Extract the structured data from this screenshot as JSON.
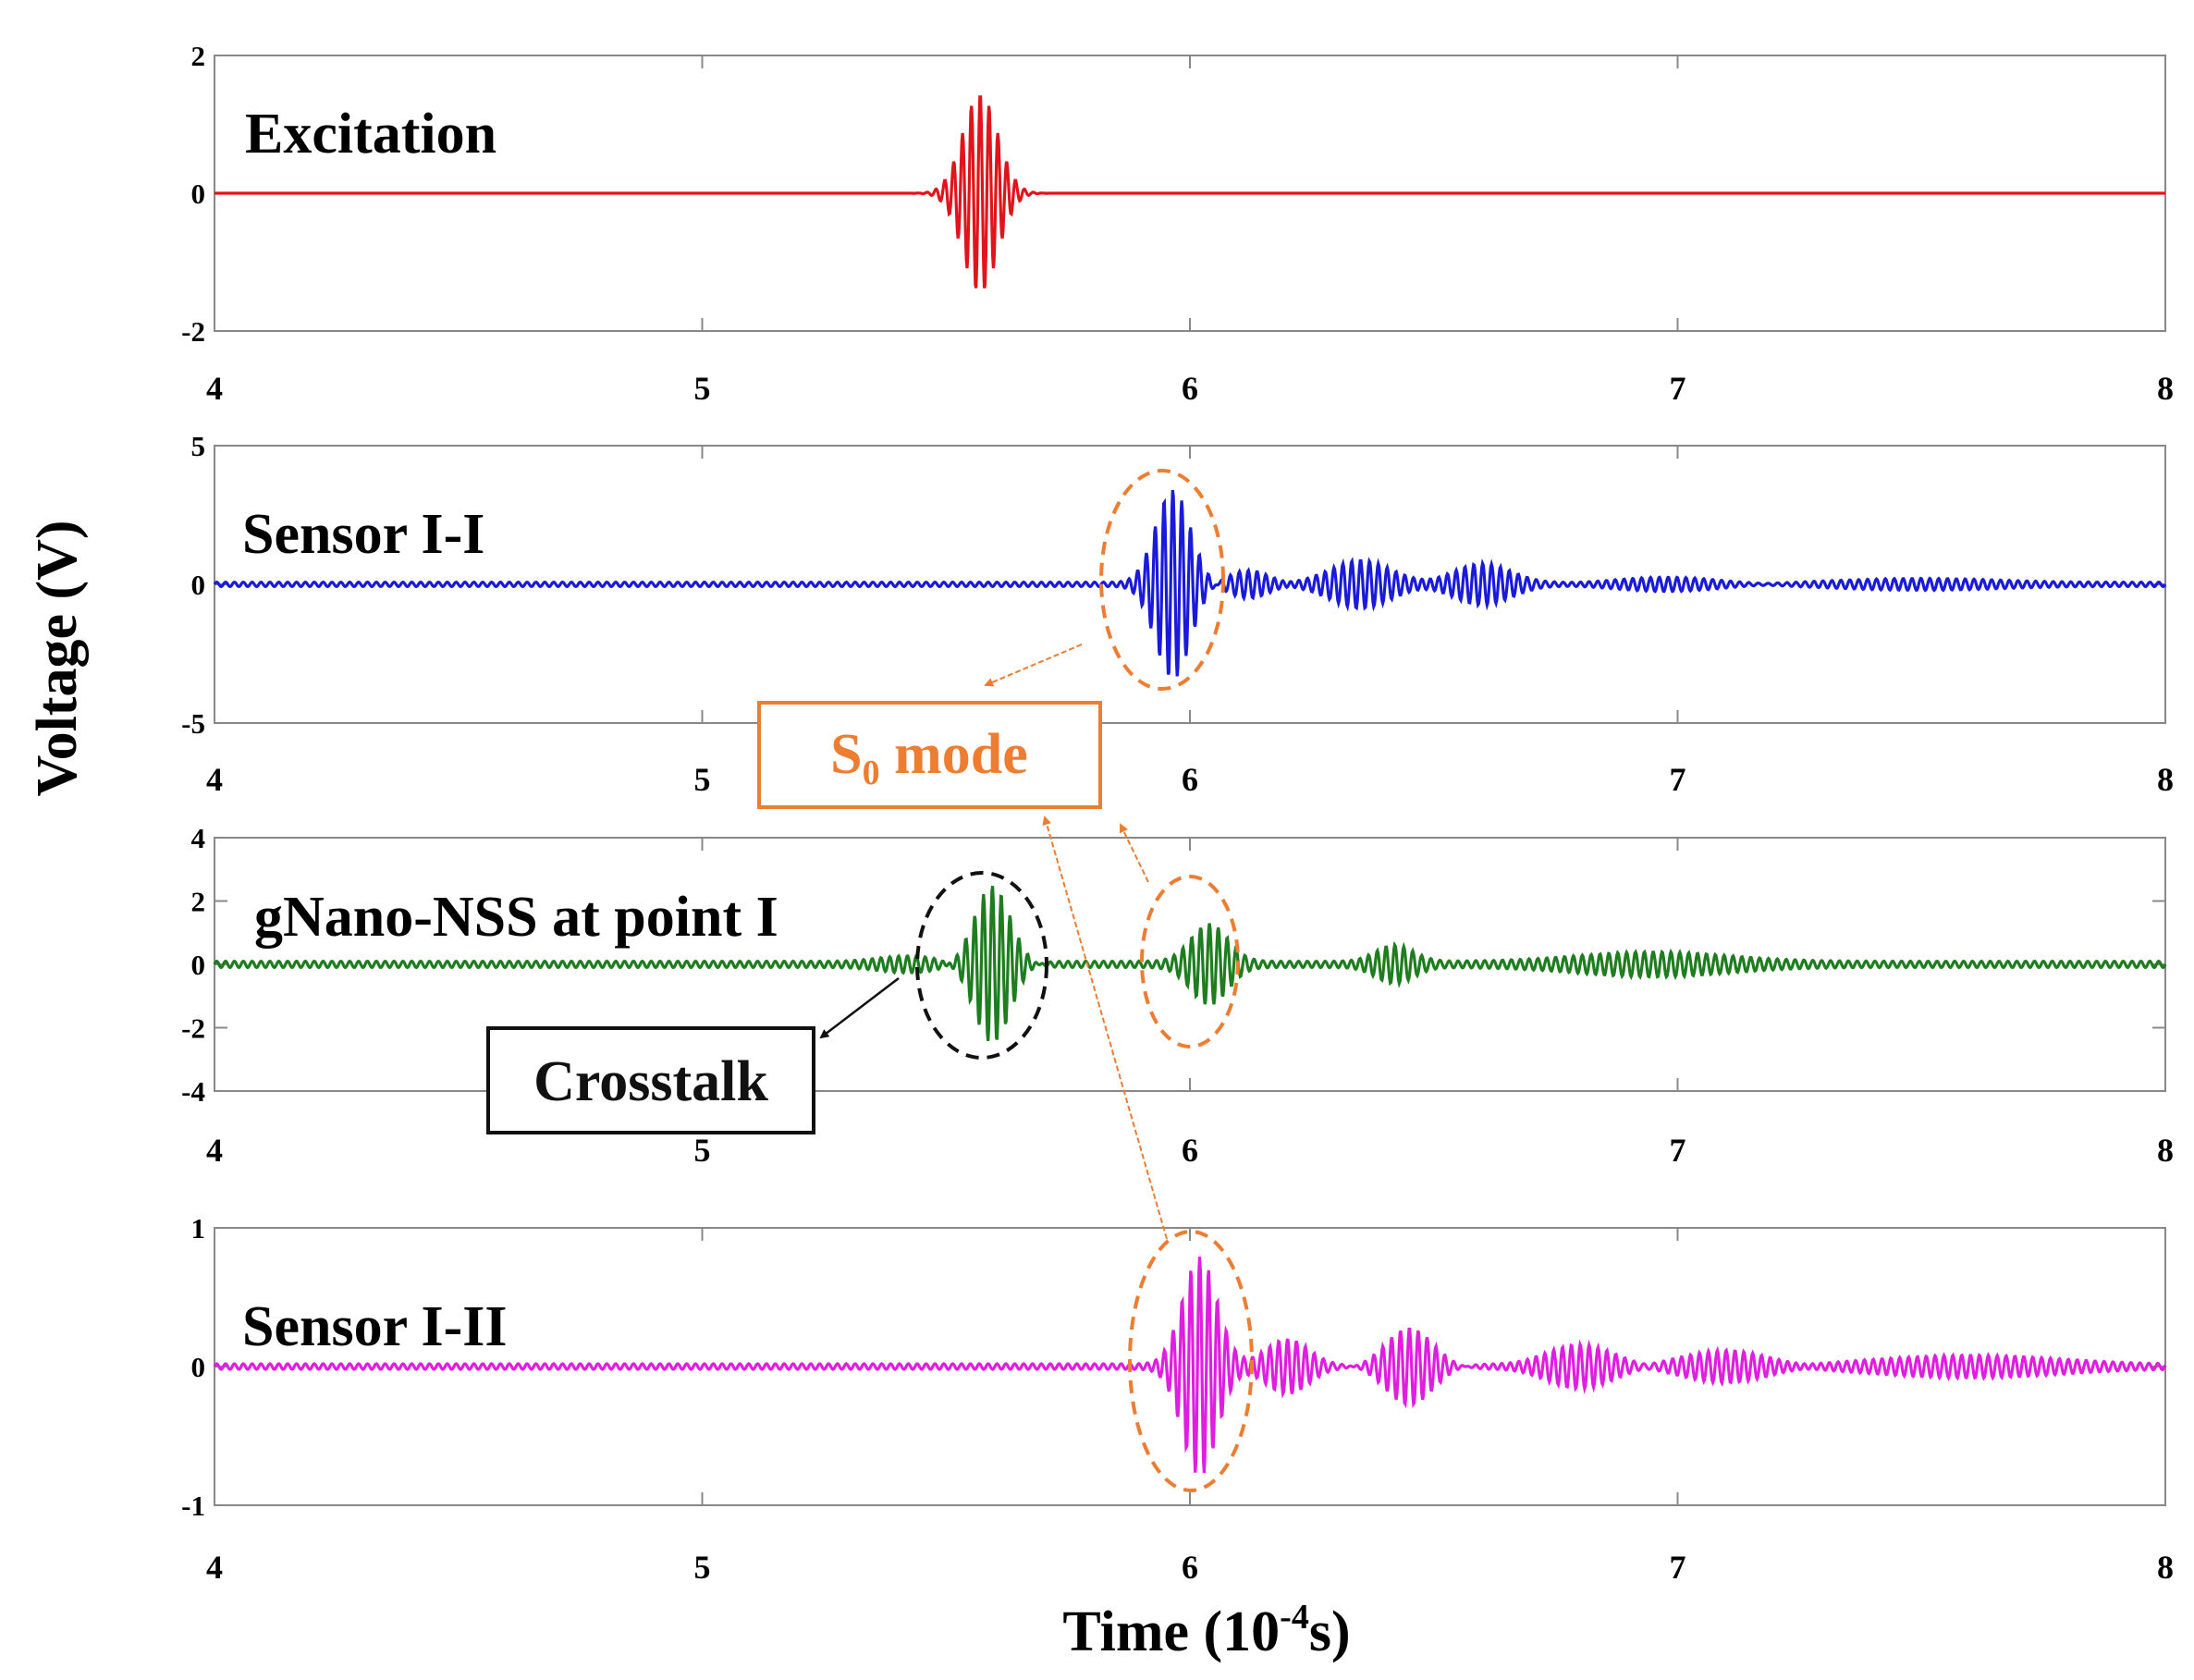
{
  "chart_data": {
    "type": "line",
    "x_label": "Time (10",
    "x_label_sup": "-4",
    "x_label_tail": "s)",
    "y_label": "Voltage (V)",
    "xlim": [
      4,
      8
    ],
    "x_ticks": [
      "4",
      "5",
      "6",
      "7",
      "8"
    ],
    "annotations": {
      "s0_mode": {
        "text": "S",
        "sub": "0",
        "tail": " mode",
        "color": "#ed7d31"
      },
      "crosstalk": {
        "text": "Crosstalk",
        "color": "#000000"
      }
    },
    "panels": [
      {
        "label": "Excitation",
        "color": "#e0141a",
        "ylim": [
          -2,
          2
        ],
        "y_ticks": [
          "-2",
          "0",
          "2"
        ],
        "y_tick_values": [
          -2,
          0,
          2
        ],
        "bursts": [
          {
            "t0": 5.57,
            "amp": 1.45,
            "freq": 55,
            "width": 0.036
          }
        ],
        "noise": {
          "amp": 0,
          "freq": 0
        }
      },
      {
        "label": "Sensor I-I",
        "color": "#1a1adb",
        "ylim": [
          -5,
          5
        ],
        "y_ticks": [
          "-5",
          "0",
          "5"
        ],
        "y_tick_values": [
          -5,
          0,
          5
        ],
        "bursts": [
          {
            "t0": 5.965,
            "amp": 3.4,
            "freq": 55,
            "width": 0.036
          },
          {
            "t0": 6.12,
            "amp": 0.55,
            "freq": 55,
            "width": 0.045
          },
          {
            "t0": 6.35,
            "amp": 0.8,
            "freq": 55,
            "width": 0.06
          },
          {
            "t0": 6.6,
            "amp": 0.75,
            "freq": 55,
            "width": 0.06
          },
          {
            "t0": 6.98,
            "amp": 0.3,
            "freq": 55,
            "width": 0.12
          },
          {
            "t0": 7.5,
            "amp": 0.2,
            "freq": 55,
            "width": 0.18
          }
        ],
        "noise": {
          "amp": 0.08,
          "freq": 55
        }
      },
      {
        "label": "gNano-NSS at point I",
        "color": "#1e7d1e",
        "ylim": [
          -4,
          4
        ],
        "y_ticks": [
          "-4",
          "-2",
          "0",
          "2",
          "4"
        ],
        "y_tick_values": [
          -4,
          -2,
          0,
          2,
          4
        ],
        "bursts": [
          {
            "t0": 5.595,
            "amp": 2.6,
            "freq": 55,
            "width": 0.038
          },
          {
            "t0": 5.42,
            "amp": 0.2,
            "freq": 55,
            "width": 0.06
          },
          {
            "t0": 6.04,
            "amp": 1.2,
            "freq": 55,
            "width": 0.038
          },
          {
            "t0": 6.42,
            "amp": 0.55,
            "freq": 55,
            "width": 0.04
          },
          {
            "t0": 6.95,
            "amp": 0.3,
            "freq": 55,
            "width": 0.15
          }
        ],
        "noise": {
          "amp": 0.1,
          "freq": 55
        }
      },
      {
        "label": "Sensor I-II",
        "color": "#e01ee0",
        "ylim": [
          -1,
          1
        ],
        "y_ticks": [
          "-1",
          "0",
          "1"
        ],
        "y_tick_values": [
          -1,
          0,
          1
        ],
        "bursts": [
          {
            "t0": 6.02,
            "amp": 0.78,
            "freq": 55,
            "width": 0.036
          },
          {
            "t0": 6.2,
            "amp": 0.2,
            "freq": 55,
            "width": 0.045
          },
          {
            "t0": 6.45,
            "amp": 0.3,
            "freq": 55,
            "width": 0.05
          },
          {
            "t0": 6.8,
            "amp": 0.16,
            "freq": 55,
            "width": 0.07
          },
          {
            "t0": 7.1,
            "amp": 0.12,
            "freq": 55,
            "width": 0.09
          },
          {
            "t0": 7.6,
            "amp": 0.08,
            "freq": 55,
            "width": 0.2
          }
        ],
        "noise": {
          "amp": 0.02,
          "freq": 55
        }
      }
    ]
  }
}
